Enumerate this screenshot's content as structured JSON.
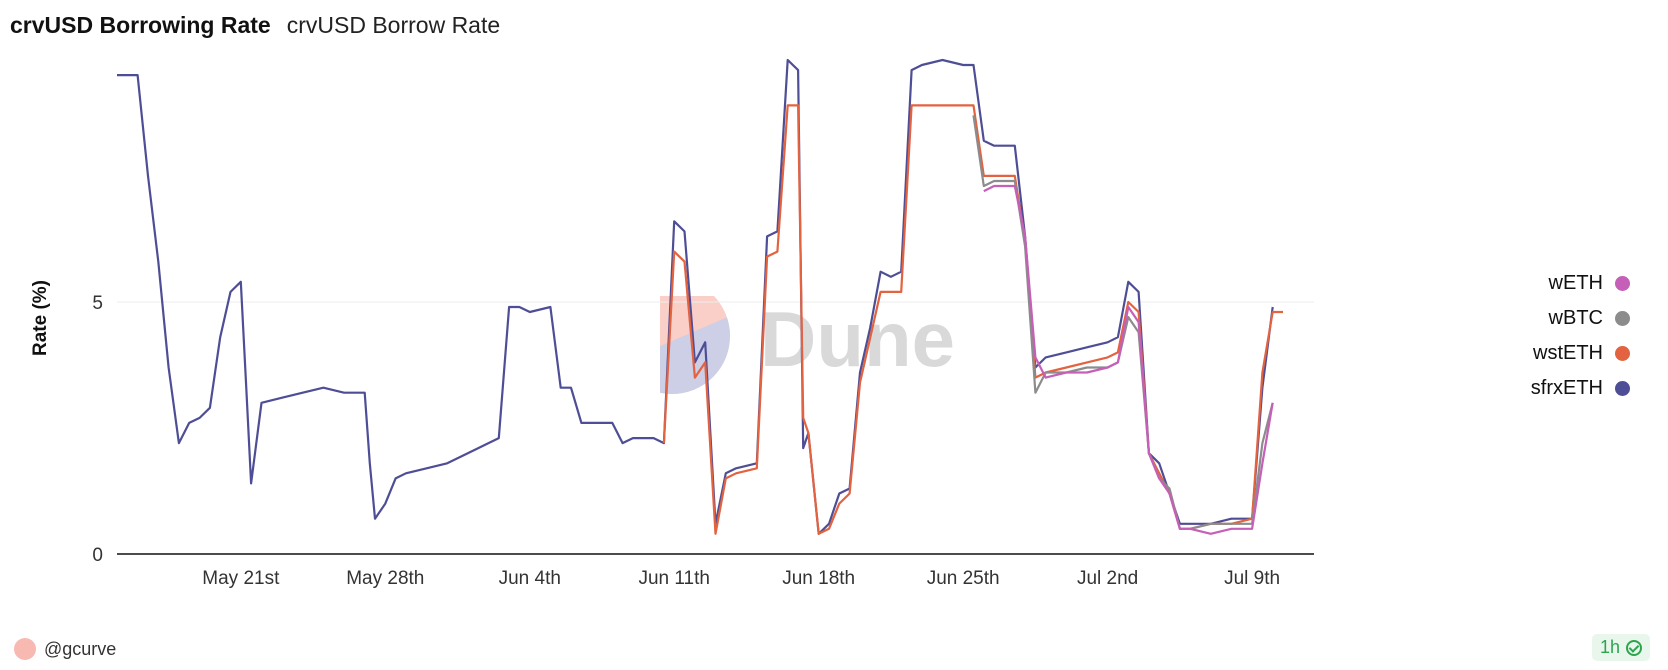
{
  "header": {
    "title": "crvUSD Borrowing Rate",
    "subtitle": "crvUSD Borrow Rate"
  },
  "watermark": {
    "text": "Dune"
  },
  "footer": {
    "author": "@gcurve",
    "refresh": "1h"
  },
  "colors": {
    "wETH": "#c65fb8",
    "wBTC": "#8c8c8c",
    "wstETH": "#e3623f",
    "sfrxETH": "#4e4e96",
    "axis": "#111111",
    "grid": "#ececec"
  },
  "chart_data": {
    "type": "line",
    "title": "",
    "xlabel": "",
    "ylabel": "Rate (%)",
    "x_type": "date",
    "x_range": [
      "2023-05-15",
      "2023-07-12"
    ],
    "xticks": [
      {
        "date": "2023-05-21",
        "label": "May 21st"
      },
      {
        "date": "2023-05-28",
        "label": "May 28th"
      },
      {
        "date": "2023-06-04",
        "label": "Jun 4th"
      },
      {
        "date": "2023-06-11",
        "label": "Jun 11th"
      },
      {
        "date": "2023-06-18",
        "label": "Jun 18th"
      },
      {
        "date": "2023-06-25",
        "label": "Jun 25th"
      },
      {
        "date": "2023-07-02",
        "label": "Jul 2nd"
      },
      {
        "date": "2023-07-09",
        "label": "Jul 9th"
      }
    ],
    "ylim": [
      0,
      9.8
    ],
    "yticks": [
      {
        "value": 0,
        "label": "0"
      },
      {
        "value": 5,
        "label": "5"
      }
    ],
    "grid": "horizontal",
    "legend_position": "right",
    "series": [
      {
        "name": "sfrxETH",
        "color": "#4e4e96",
        "points": [
          [
            "2023-05-15",
            9.5
          ],
          [
            "2023-05-16",
            9.5
          ],
          [
            "2023-05-16 12:00",
            7.5
          ],
          [
            "2023-05-17",
            5.8
          ],
          [
            "2023-05-17 12:00",
            3.7
          ],
          [
            "2023-05-18",
            2.2
          ],
          [
            "2023-05-18 12:00",
            2.6
          ],
          [
            "2023-05-19",
            2.7
          ],
          [
            "2023-05-19 12:00",
            2.9
          ],
          [
            "2023-05-20",
            4.3
          ],
          [
            "2023-05-20 12:00",
            5.2
          ],
          [
            "2023-05-21",
            5.4
          ],
          [
            "2023-05-21 06:00",
            3.4
          ],
          [
            "2023-05-21 12:00",
            1.4
          ],
          [
            "2023-05-22",
            3.0
          ],
          [
            "2023-05-23",
            3.1
          ],
          [
            "2023-05-24",
            3.2
          ],
          [
            "2023-05-25",
            3.3
          ],
          [
            "2023-05-26",
            3.2
          ],
          [
            "2023-05-27",
            3.2
          ],
          [
            "2023-05-27 06:00",
            1.8
          ],
          [
            "2023-05-27 12:00",
            0.7
          ],
          [
            "2023-05-28",
            1.0
          ],
          [
            "2023-05-28 12:00",
            1.5
          ],
          [
            "2023-05-29",
            1.6
          ],
          [
            "2023-05-30",
            1.7
          ],
          [
            "2023-05-31",
            1.8
          ],
          [
            "2023-06-01",
            2.0
          ],
          [
            "2023-06-02",
            2.2
          ],
          [
            "2023-06-02 12:00",
            2.3
          ],
          [
            "2023-06-03",
            4.9
          ],
          [
            "2023-06-03 12:00",
            4.9
          ],
          [
            "2023-06-04",
            4.8
          ],
          [
            "2023-06-05",
            4.9
          ],
          [
            "2023-06-05 12:00",
            3.3
          ],
          [
            "2023-06-06",
            3.3
          ],
          [
            "2023-06-06 12:00",
            2.6
          ],
          [
            "2023-06-07",
            2.6
          ],
          [
            "2023-06-08",
            2.6
          ],
          [
            "2023-06-08 12:00",
            2.2
          ],
          [
            "2023-06-09",
            2.3
          ],
          [
            "2023-06-10",
            2.3
          ],
          [
            "2023-06-10 12:00",
            2.2
          ],
          [
            "2023-06-11",
            6.6
          ],
          [
            "2023-06-11 12:00",
            6.4
          ],
          [
            "2023-06-12",
            3.8
          ],
          [
            "2023-06-12 12:00",
            4.2
          ],
          [
            "2023-06-13",
            0.6
          ],
          [
            "2023-06-13 12:00",
            1.6
          ],
          [
            "2023-06-14",
            1.7
          ],
          [
            "2023-06-15",
            1.8
          ],
          [
            "2023-06-15 12:00",
            6.3
          ],
          [
            "2023-06-16",
            6.4
          ],
          [
            "2023-06-16 12:00",
            9.8
          ],
          [
            "2023-06-17",
            9.6
          ],
          [
            "2023-06-17 06:00",
            2.1
          ],
          [
            "2023-06-17 12:00",
            2.4
          ],
          [
            "2023-06-18",
            0.4
          ],
          [
            "2023-06-18 12:00",
            0.6
          ],
          [
            "2023-06-19",
            1.2
          ],
          [
            "2023-06-19 12:00",
            1.3
          ],
          [
            "2023-06-20",
            3.6
          ],
          [
            "2023-06-20 12:00",
            4.5
          ],
          [
            "2023-06-21",
            5.6
          ],
          [
            "2023-06-21 12:00",
            5.5
          ],
          [
            "2023-06-22",
            5.6
          ],
          [
            "2023-06-22 12:00",
            9.6
          ],
          [
            "2023-06-23",
            9.7
          ],
          [
            "2023-06-24",
            9.8
          ],
          [
            "2023-06-25",
            9.7
          ],
          [
            "2023-06-25 12:00",
            9.7
          ],
          [
            "2023-06-26",
            8.2
          ],
          [
            "2023-06-26 12:00",
            8.1
          ],
          [
            "2023-06-27",
            8.1
          ],
          [
            "2023-06-27 12:00",
            8.1
          ],
          [
            "2023-06-28",
            6.3
          ],
          [
            "2023-06-28 12:00",
            3.7
          ],
          [
            "2023-06-29",
            3.9
          ],
          [
            "2023-06-30",
            4.0
          ],
          [
            "2023-07-01",
            4.1
          ],
          [
            "2023-07-02",
            4.2
          ],
          [
            "2023-07-02 12:00",
            4.3
          ],
          [
            "2023-07-03",
            5.4
          ],
          [
            "2023-07-03 12:00",
            5.2
          ],
          [
            "2023-07-04",
            2.0
          ],
          [
            "2023-07-04 12:00",
            1.8
          ],
          [
            "2023-07-05",
            1.2
          ],
          [
            "2023-07-05 12:00",
            0.6
          ],
          [
            "2023-07-06",
            0.6
          ],
          [
            "2023-07-07",
            0.6
          ],
          [
            "2023-07-08",
            0.7
          ],
          [
            "2023-07-09",
            0.7
          ],
          [
            "2023-07-09 12:00",
            3.3
          ],
          [
            "2023-07-10",
            4.9
          ]
        ]
      },
      {
        "name": "wstETH",
        "color": "#e3623f",
        "points": [
          [
            "2023-06-10 12:00",
            2.2
          ],
          [
            "2023-06-11",
            6.0
          ],
          [
            "2023-06-11 12:00",
            5.8
          ],
          [
            "2023-06-12",
            3.5
          ],
          [
            "2023-06-12 12:00",
            3.8
          ],
          [
            "2023-06-13",
            0.4
          ],
          [
            "2023-06-13 12:00",
            1.5
          ],
          [
            "2023-06-14",
            1.6
          ],
          [
            "2023-06-15",
            1.7
          ],
          [
            "2023-06-15 12:00",
            5.9
          ],
          [
            "2023-06-16",
            6.0
          ],
          [
            "2023-06-16 12:00",
            8.9
          ],
          [
            "2023-06-17",
            8.9
          ],
          [
            "2023-06-17 06:00",
            2.7
          ],
          [
            "2023-06-17 12:00",
            2.4
          ],
          [
            "2023-06-18",
            0.4
          ],
          [
            "2023-06-18 12:00",
            0.5
          ],
          [
            "2023-06-19",
            1.0
          ],
          [
            "2023-06-19 12:00",
            1.2
          ],
          [
            "2023-06-20",
            3.4
          ],
          [
            "2023-06-20 12:00",
            4.3
          ],
          [
            "2023-06-21",
            5.2
          ],
          [
            "2023-06-21 12:00",
            5.2
          ],
          [
            "2023-06-22",
            5.2
          ],
          [
            "2023-06-22 12:00",
            8.9
          ],
          [
            "2023-06-23",
            8.9
          ],
          [
            "2023-06-24",
            8.9
          ],
          [
            "2023-06-25",
            8.9
          ],
          [
            "2023-06-25 12:00",
            8.9
          ],
          [
            "2023-06-26",
            7.5
          ],
          [
            "2023-06-26 12:00",
            7.5
          ],
          [
            "2023-06-27",
            7.5
          ],
          [
            "2023-06-27 12:00",
            7.5
          ],
          [
            "2023-06-28",
            6.2
          ],
          [
            "2023-06-28 12:00",
            3.5
          ],
          [
            "2023-06-29",
            3.6
          ],
          [
            "2023-06-30",
            3.7
          ],
          [
            "2023-07-01",
            3.8
          ],
          [
            "2023-07-02",
            3.9
          ],
          [
            "2023-07-02 12:00",
            4.0
          ],
          [
            "2023-07-03",
            5.0
          ],
          [
            "2023-07-03 12:00",
            4.8
          ],
          [
            "2023-07-04",
            2.0
          ],
          [
            "2023-07-04 12:00",
            1.6
          ],
          [
            "2023-07-05",
            1.2
          ],
          [
            "2023-07-05 12:00",
            0.5
          ],
          [
            "2023-07-06",
            0.5
          ],
          [
            "2023-07-07",
            0.6
          ],
          [
            "2023-07-08",
            0.6
          ],
          [
            "2023-07-09",
            0.7
          ],
          [
            "2023-07-09 12:00",
            3.6
          ],
          [
            "2023-07-10",
            4.8
          ],
          [
            "2023-07-10 12:00",
            4.8
          ]
        ]
      },
      {
        "name": "wBTC",
        "color": "#8c8c8c",
        "points": [
          [
            "2023-06-25 12:00",
            8.7
          ],
          [
            "2023-06-26",
            7.3
          ],
          [
            "2023-06-26 12:00",
            7.4
          ],
          [
            "2023-06-27",
            7.4
          ],
          [
            "2023-06-27 12:00",
            7.4
          ],
          [
            "2023-06-28",
            6.1
          ],
          [
            "2023-06-28 12:00",
            3.2
          ],
          [
            "2023-06-29",
            3.6
          ],
          [
            "2023-06-30",
            3.6
          ],
          [
            "2023-07-01",
            3.7
          ],
          [
            "2023-07-02",
            3.7
          ],
          [
            "2023-07-02 12:00",
            3.8
          ],
          [
            "2023-07-03",
            4.7
          ],
          [
            "2023-07-03 12:00",
            4.4
          ],
          [
            "2023-07-04",
            2.0
          ],
          [
            "2023-07-04 12:00",
            1.5
          ],
          [
            "2023-07-05",
            1.3
          ],
          [
            "2023-07-05 12:00",
            0.5
          ],
          [
            "2023-07-06",
            0.5
          ],
          [
            "2023-07-07",
            0.6
          ],
          [
            "2023-07-08",
            0.6
          ],
          [
            "2023-07-09",
            0.6
          ],
          [
            "2023-07-09 12:00",
            2.2
          ],
          [
            "2023-07-10",
            3.0
          ]
        ]
      },
      {
        "name": "wETH",
        "color": "#c65fb8",
        "points": [
          [
            "2023-06-26",
            7.2
          ],
          [
            "2023-06-26 12:00",
            7.3
          ],
          [
            "2023-06-27",
            7.3
          ],
          [
            "2023-06-27 12:00",
            7.3
          ],
          [
            "2023-06-28",
            6.3
          ],
          [
            "2023-06-28 12:00",
            3.9
          ],
          [
            "2023-06-29",
            3.5
          ],
          [
            "2023-06-30",
            3.6
          ],
          [
            "2023-07-01",
            3.6
          ],
          [
            "2023-07-02",
            3.7
          ],
          [
            "2023-07-02 12:00",
            3.8
          ],
          [
            "2023-07-03",
            4.9
          ],
          [
            "2023-07-03 12:00",
            4.6
          ],
          [
            "2023-07-04",
            2.0
          ],
          [
            "2023-07-04 12:00",
            1.5
          ],
          [
            "2023-07-05",
            1.2
          ],
          [
            "2023-07-05 12:00",
            0.5
          ],
          [
            "2023-07-06",
            0.5
          ],
          [
            "2023-07-07",
            0.4
          ],
          [
            "2023-07-08",
            0.5
          ],
          [
            "2023-07-09",
            0.5
          ],
          [
            "2023-07-09 12:00",
            1.8
          ],
          [
            "2023-07-10",
            3.0
          ]
        ]
      }
    ],
    "legend_order": [
      "wETH",
      "wBTC",
      "wstETH",
      "sfrxETH"
    ]
  }
}
